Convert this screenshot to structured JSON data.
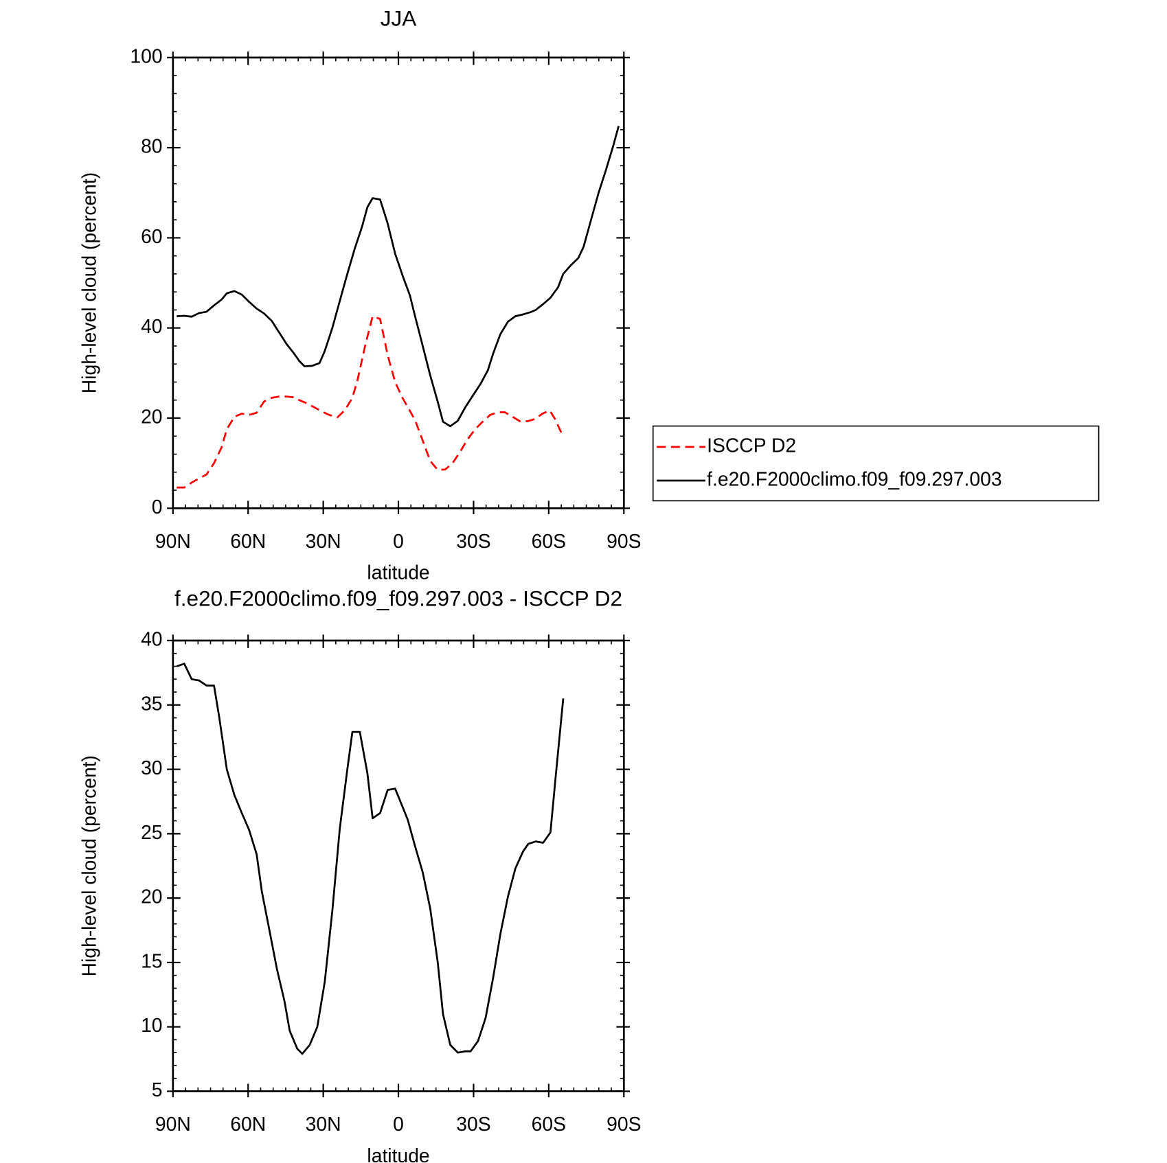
{
  "chart_data": [
    {
      "type": "line",
      "title": "JJA",
      "x_label": "latitude",
      "y_label": "High-level cloud (percent)",
      "xlim": [
        90,
        -90
      ],
      "xticks": [
        {
          "value": 90,
          "label": "90N"
        },
        {
          "value": 60,
          "label": "60N"
        },
        {
          "value": 30,
          "label": "30N"
        },
        0,
        {
          "value": -30,
          "label": "30S"
        },
        {
          "value": -60,
          "label": "60S"
        },
        {
          "value": -90,
          "label": "90S"
        }
      ],
      "ylim": [
        0,
        100
      ],
      "yticks": [
        0,
        20,
        40,
        60,
        80,
        100
      ],
      "legend": "right",
      "series": [
        {
          "name": "ISCCP D2",
          "color": "#ff0000",
          "dash": true,
          "x": [
            88.5,
            85.5,
            82.5,
            79.6,
            76.6,
            73.6,
            70.6,
            68.5,
            65.5,
            62.5,
            59.6,
            56.6,
            53.6,
            50.6,
            47.6,
            44.6,
            41.6,
            39.6,
            36.6,
            33.6,
            30.6,
            27.6,
            24.3,
            21.3,
            18.4,
            16.3,
            13.3,
            10.3,
            7.3,
            4.3,
            1.3,
            -1.6,
            -4.6,
            -6.7,
            -9.7,
            -12.7,
            -15.7,
            -18.7,
            -21.6,
            -24.6,
            -27.6,
            -30.6,
            -33.6,
            -36.6,
            -39.6,
            -42.5,
            -45.5,
            -48.5,
            -51.5,
            -54.5,
            -57.5,
            -60.4,
            -62.5,
            -65.5
          ],
          "values": [
            4.6,
            4.6,
            5.7,
            6.6,
            7.5,
            10,
            13.5,
            17.5,
            20.3,
            21,
            20.7,
            21.2,
            23.7,
            24.5,
            24.8,
            24.8,
            24.6,
            24,
            23.3,
            22.4,
            21.5,
            20.7,
            20.2,
            21.8,
            24.5,
            28.5,
            36,
            42.6,
            42,
            34,
            28,
            24.5,
            21.6,
            19.5,
            15,
            10.5,
            8.5,
            8.6,
            10,
            12.5,
            15.3,
            17.5,
            19.2,
            20.7,
            21.3,
            21.3,
            20.3,
            19.3,
            19.3,
            19.8,
            21,
            21.7,
            19.8,
            16.2
          ]
        },
        {
          "name": "f.e20.F2000climo.f09_f09.297.003",
          "color": "#000000",
          "dash": false,
          "x": [
            88.5,
            85.5,
            82.5,
            79.6,
            76.6,
            73.6,
            70.6,
            68.5,
            65.5,
            62.5,
            59.6,
            56.6,
            53.6,
            50.6,
            47.6,
            44.6,
            41.6,
            39.6,
            37.5,
            34.5,
            31.5,
            29.4,
            26.4,
            23.4,
            20.4,
            17.5,
            14.5,
            12.4,
            10.3,
            7.3,
            4.3,
            1.3,
            -1.6,
            -4.6,
            -6.7,
            -9.7,
            -12.7,
            -15.7,
            -17.8,
            -20.7,
            -23.7,
            -26.7,
            -29.7,
            -32.7,
            -35.7,
            -37.8,
            -40.7,
            -43.7,
            -46.7,
            -49.7,
            -52.7,
            -54.8,
            -57.8,
            -60.7,
            -63.7,
            -65.8,
            -68.8,
            -71.8,
            -73.9,
            -76.9,
            -79.9,
            -82.8,
            -85.8,
            -87.9
          ],
          "values": [
            42.6,
            42.7,
            42.5,
            43.3,
            43.6,
            45,
            46.3,
            47.7,
            48.2,
            47.4,
            45.8,
            44.3,
            43.2,
            41.6,
            39,
            36.4,
            34.3,
            32.7,
            31.5,
            31.6,
            32.2,
            34.9,
            40,
            46,
            52,
            57.5,
            62.5,
            66.8,
            68.8,
            68.5,
            63.2,
            56.5,
            51.7,
            47.2,
            42.5,
            36,
            29.5,
            23.6,
            19.2,
            18.2,
            19.4,
            22.4,
            25,
            27.5,
            30.6,
            34.3,
            38.6,
            41.4,
            42.6,
            43,
            43.5,
            44,
            45.3,
            46.7,
            49,
            52,
            53.9,
            55.5,
            58,
            64,
            70,
            75,
            80.5,
            84.8
          ]
        }
      ]
    },
    {
      "type": "line",
      "title": "f.e20.F2000climo.f09_f09.297.003 - ISCCP D2",
      "x_label": "latitude",
      "y_label": "High-level cloud (percent)",
      "xlim": [
        90,
        -90
      ],
      "xticks": [
        {
          "value": 90,
          "label": "90N"
        },
        {
          "value": 60,
          "label": "60N"
        },
        {
          "value": 30,
          "label": "30N"
        },
        0,
        {
          "value": -30,
          "label": "30S"
        },
        {
          "value": -60,
          "label": "60S"
        },
        {
          "value": -90,
          "label": "90S"
        }
      ],
      "ylim": [
        5,
        40
      ],
      "yticks": [
        5,
        10,
        15,
        20,
        25,
        30,
        35,
        40
      ],
      "series": [
        {
          "color": "#000000",
          "dash": false,
          "x": [
            88.5,
            85.5,
            82.5,
            79.6,
            76.6,
            73.6,
            71.5,
            68.5,
            65.5,
            62.5,
            59.6,
            56.6,
            54.5,
            51.5,
            48.5,
            45.5,
            43.4,
            40.4,
            38.4,
            35.4,
            32.4,
            29.4,
            26.4,
            23.4,
            20.4,
            18.4,
            15.4,
            12.4,
            10.3,
            7.3,
            4.3,
            1.3,
            -1.6,
            -3.7,
            -6.7,
            -9.7,
            -12.7,
            -15.7,
            -17.8,
            -20.7,
            -23.7,
            -26.7,
            -28.8,
            -31.8,
            -34.8,
            -37.8,
            -40.7,
            -43.7,
            -46.7,
            -49.7,
            -51.8,
            -54.8,
            -57.8,
            -60.7,
            -62.8,
            -65.8
          ],
          "values": [
            38,
            38.2,
            37,
            36.9,
            36.5,
            36.5,
            34,
            30,
            28,
            26.6,
            25.3,
            23.4,
            20.5,
            17.5,
            14.5,
            12,
            9.7,
            8.3,
            7.9,
            8.6,
            10,
            13.5,
            19,
            25.4,
            30,
            32.9,
            32.9,
            29.7,
            26.2,
            26.6,
            28.4,
            28.5,
            27.1,
            26.1,
            24,
            22,
            19.2,
            15,
            11,
            8.6,
            8,
            8.1,
            8.1,
            8.9,
            10.7,
            13.8,
            17.2,
            20.1,
            22.3,
            23.6,
            24.2,
            24.4,
            24.3,
            25.1,
            29.5,
            35.5
          ]
        }
      ]
    }
  ]
}
